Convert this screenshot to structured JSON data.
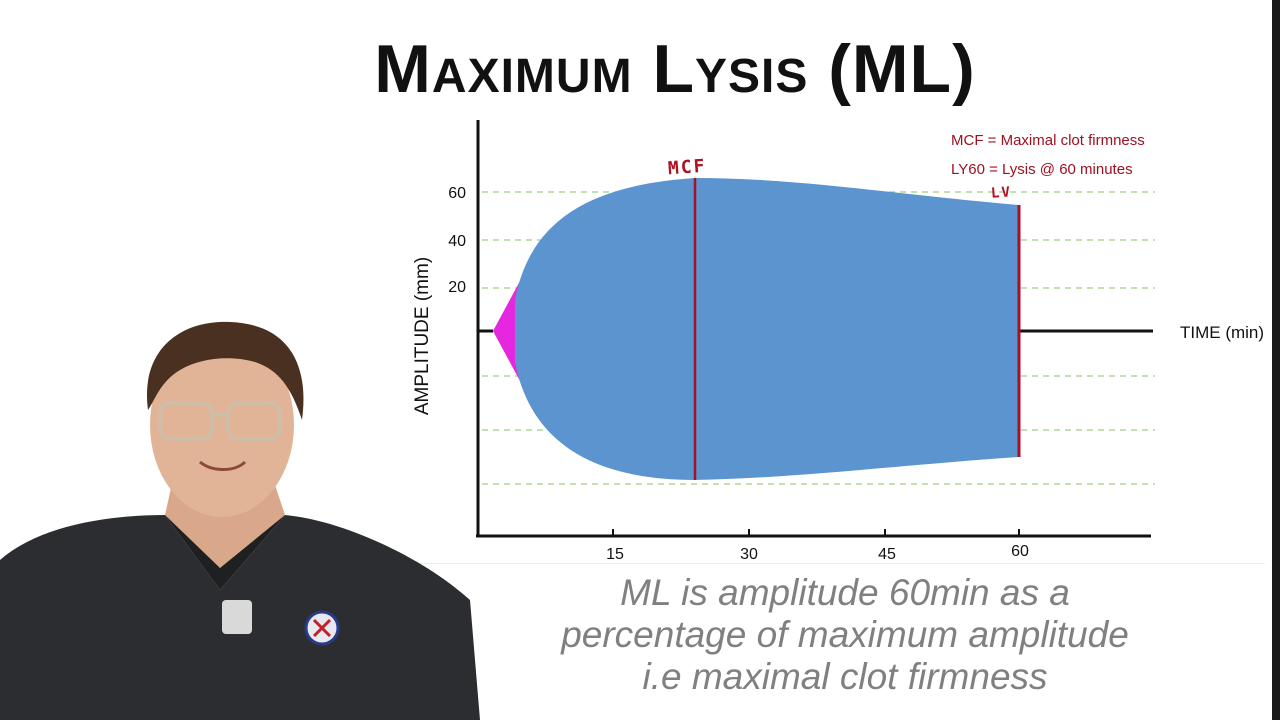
{
  "title": "Maximum Lysis (ML)",
  "legend": {
    "mcf": "MCF = Maximal clot firmness",
    "ly60": "LY60 = Lysis @ 60 minutes"
  },
  "annotations": {
    "mcf": "MCF",
    "lv": "LV"
  },
  "axes": {
    "ylabel": "AMPLITUDE (mm)",
    "xlabel": "TIME (min)",
    "y_ticks": [
      "60",
      "40",
      "20"
    ],
    "x_ticks": [
      "15",
      "30",
      "45",
      "60"
    ]
  },
  "caption_lines": [
    "ML is amplitude 60min as a",
    "percentage of maximum amplitude",
    "i.e maximal clot firmness"
  ],
  "colors": {
    "trace_fill": "#5b94cf",
    "initial_fill": "#e627e0",
    "marker_line": "#a8102a",
    "grid": "#9fcf7f",
    "axis": "#111111"
  }
}
